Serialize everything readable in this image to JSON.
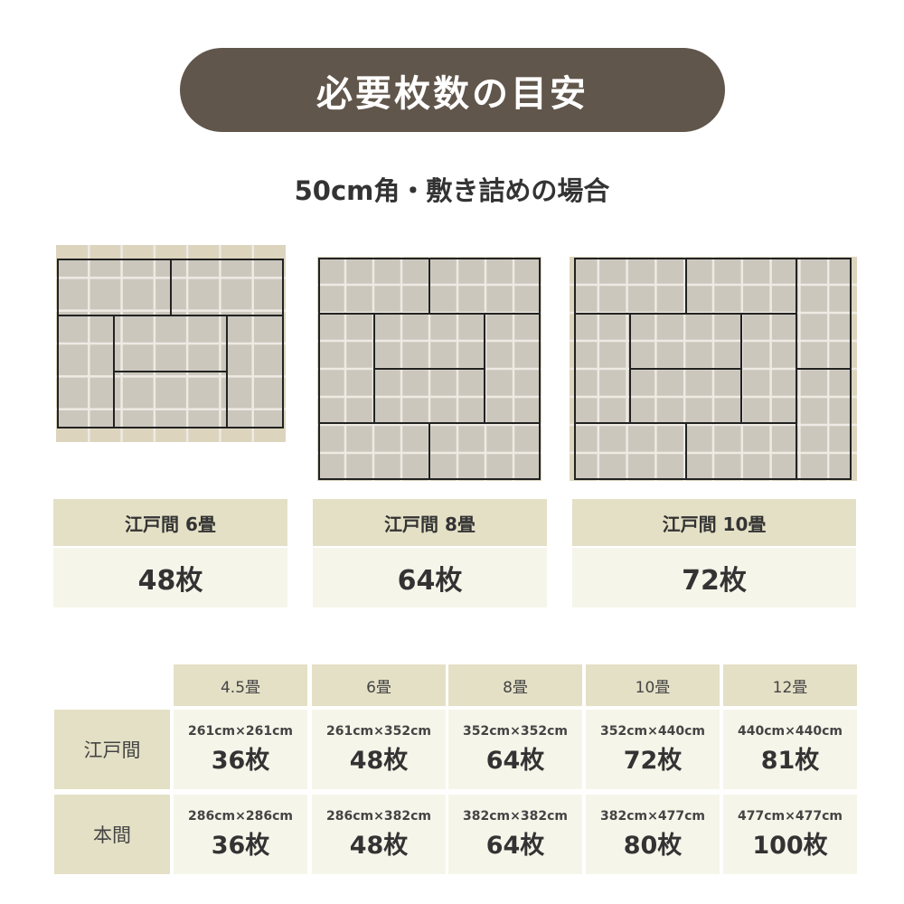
{
  "title": "必要枚数の目安",
  "subtitle": "50cm角・敷き詰めの場合",
  "colors": {
    "pill": "#61564b",
    "header_bg": "#e4e0c6",
    "cell_bg": "#f6f5ea",
    "tile": "#cbc7bd",
    "tile_border": "#dcd4bd"
  },
  "examples": [
    {
      "label": "江戸間 6畳",
      "count": "48枚"
    },
    {
      "label": "江戸間 8畳",
      "count": "64枚"
    },
    {
      "label": "江戸間 10畳",
      "count": "72枚"
    }
  ],
  "table": {
    "columns": [
      "4.5畳",
      "6畳",
      "8畳",
      "10畳",
      "12畳"
    ],
    "rows": [
      {
        "name": "江戸間",
        "cells": [
          {
            "size": "261cm×261cm",
            "count": "36枚"
          },
          {
            "size": "261cm×352cm",
            "count": "48枚"
          },
          {
            "size": "352cm×352cm",
            "count": "64枚"
          },
          {
            "size": "352cm×440cm",
            "count": "72枚"
          },
          {
            "size": "440cm×440cm",
            "count": "81枚"
          }
        ]
      },
      {
        "name": "本間",
        "cells": [
          {
            "size": "286cm×286cm",
            "count": "36枚"
          },
          {
            "size": "286cm×382cm",
            "count": "48枚"
          },
          {
            "size": "382cm×382cm",
            "count": "64枚"
          },
          {
            "size": "382cm×477cm",
            "count": "80枚"
          },
          {
            "size": "477cm×477cm",
            "count": "100枚"
          }
        ]
      }
    ]
  }
}
